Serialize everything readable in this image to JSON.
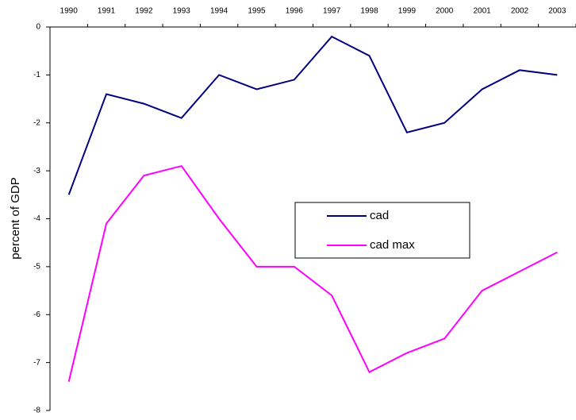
{
  "chart_data": {
    "type": "line",
    "y_label": "percent of GDP",
    "categories": [
      "1990",
      "1991",
      "1992",
      "1993",
      "1994",
      "1995",
      "1996",
      "1997",
      "1998",
      "1999",
      "2000",
      "2001",
      "2002",
      "2003"
    ],
    "series": [
      {
        "name": "cad",
        "color": "#000080",
        "values": [
          -3.5,
          -1.4,
          -1.6,
          -1.9,
          -1.0,
          -1.3,
          -1.1,
          -0.2,
          -0.6,
          -2.2,
          -2.0,
          -1.3,
          -0.9,
          -1.0
        ]
      },
      {
        "name": "cad max",
        "color": "#ff00ff",
        "values": [
          -7.4,
          -4.1,
          -3.1,
          -2.9,
          -4.0,
          -5.0,
          -5.0,
          -5.6,
          -7.2,
          -6.8,
          -6.5,
          -5.5,
          -5.1,
          -4.7
        ]
      }
    ],
    "ylim": [
      -8,
      0
    ],
    "yticks": [
      0,
      -1,
      -2,
      -3,
      -4,
      -5,
      -6,
      -7,
      -8
    ],
    "grid": false
  }
}
